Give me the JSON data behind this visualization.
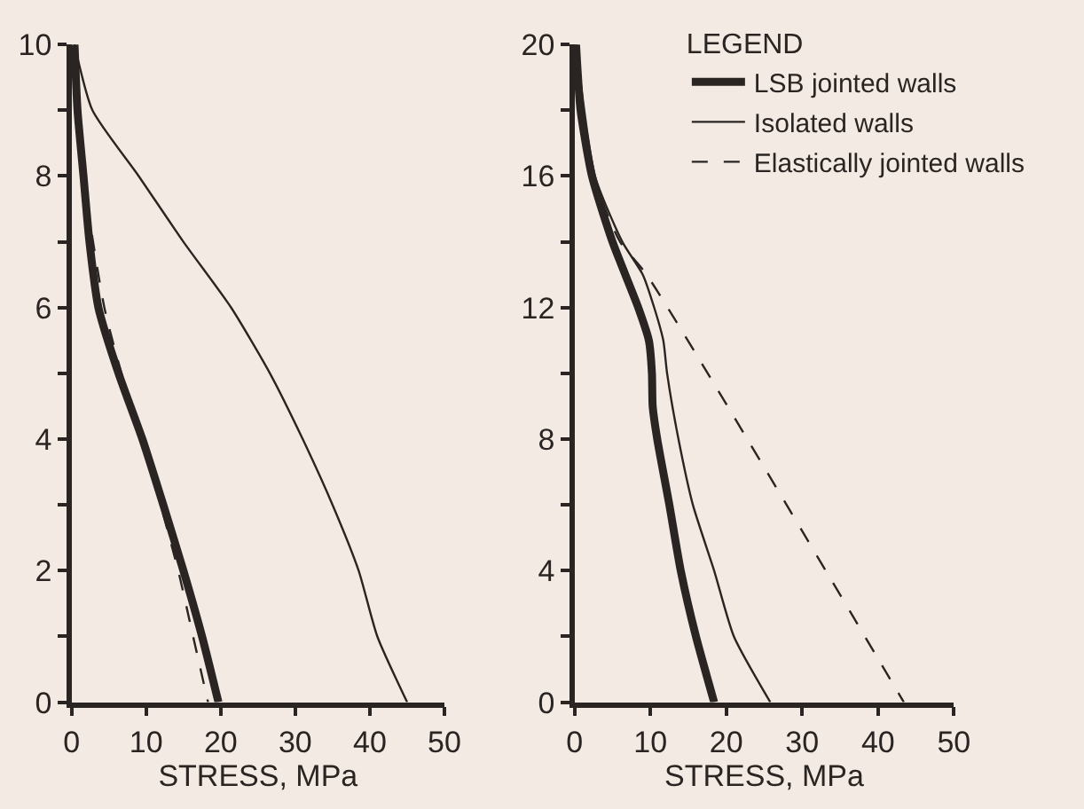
{
  "chart_data": [
    {
      "type": "line",
      "xlabel": "STRESS, MPa",
      "xlim": [
        0,
        50
      ],
      "xticks": [
        0,
        10,
        20,
        30,
        40,
        50
      ],
      "ylim": [
        0,
        10
      ],
      "yticks": [
        0,
        {
          "value": 1,
          "label": null
        },
        2,
        {
          "value": 3,
          "label": null
        },
        4,
        {
          "value": 5,
          "label": null
        },
        6,
        {
          "value": 7,
          "label": null
        },
        8,
        {
          "value": 9,
          "label": null
        },
        10
      ],
      "grid": false,
      "legend": false,
      "series": [
        {
          "color": "#2a2522",
          "line_style": "solid",
          "x": [
            0.4,
            0.8,
            1.6,
            2.4,
            3.6,
            6.3,
            9.5,
            12.3,
            15,
            17.5,
            19.7
          ],
          "values": [
            10,
            9,
            8,
            7,
            6,
            5,
            4,
            3,
            2,
            1,
            0
          ]
        },
        {
          "color": "#2a2522",
          "line_style": "solid",
          "x": [
            0.4,
            2.8,
            9,
            15,
            21.4,
            26.6,
            31,
            35,
            38.5,
            41,
            45
          ],
          "values": [
            10,
            9,
            8,
            7,
            6,
            5,
            4,
            3,
            2,
            1,
            0
          ]
        },
        {
          "color": "#2a2522",
          "line_style": "dashed",
          "x": [
            0.4,
            1.6,
            4.4,
            6.7,
            9.5,
            14.3,
            16.3,
            18.3
          ],
          "values": [
            10,
            8,
            6,
            5,
            4,
            2,
            1,
            0
          ]
        }
      ]
    },
    {
      "type": "line",
      "xlabel": "STRESS, MPa",
      "xlim": [
        0,
        50
      ],
      "xticks": [
        0,
        10,
        20,
        30,
        40,
        50
      ],
      "ylim": [
        0,
        20
      ],
      "yticks": [
        0,
        {
          "value": 2,
          "label": null
        },
        4,
        {
          "value": 6,
          "label": null
        },
        8,
        {
          "value": 10,
          "label": null
        },
        12,
        {
          "value": 14,
          "label": null
        },
        16,
        {
          "value": 18,
          "label": null
        },
        20
      ],
      "grid": false,
      "legend": "top right",
      "legend_title": "LEGEND",
      "series": [
        {
          "name": "LSB jointed walls",
          "color": "#2a2522",
          "line_style": "solid",
          "x": [
            0.2,
            0.8,
            2.3,
            5,
            8.4,
            9.8,
            10.2,
            10.3,
            10.9,
            12.5,
            14,
            16,
            18.4
          ],
          "values": [
            20,
            18,
            16,
            14,
            12,
            11,
            10,
            9,
            8,
            6,
            4,
            2,
            0
          ]
        },
        {
          "name": "Isolated walls",
          "color": "#2a2522",
          "line_style": "solid",
          "x": [
            0.2,
            2.7,
            6.3,
            9,
            10.5,
            11.7,
            12.2,
            13.7,
            15.6,
            18.4,
            21,
            25.8
          ],
          "values": [
            20,
            16,
            14,
            13,
            12,
            11,
            10,
            8,
            6,
            4,
            2,
            0
          ]
        },
        {
          "name": "Elastically jointed walls",
          "color": "#2a2522",
          "line_style": "dashed",
          "x": [
            0.2,
            2.5,
            6,
            9.5,
            43.4
          ],
          "values": [
            20,
            16,
            14,
            13,
            0
          ]
        }
      ]
    }
  ]
}
